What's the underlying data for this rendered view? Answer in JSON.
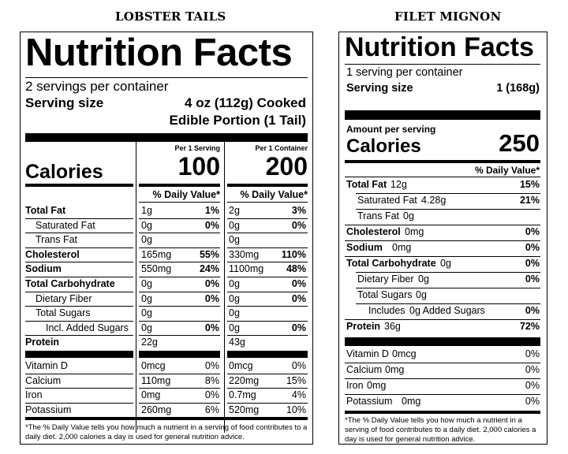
{
  "left": {
    "caption": "LOBSTER TAILS",
    "title": "Nutrition Facts",
    "servings": "2 servings per container",
    "serving_size_label": "Serving size",
    "serving_size_value_1": "4 oz (112g) Cooked",
    "serving_size_value_2": "Edible Portion (1 Tail)",
    "col_headers": [
      "Per 1 Serving",
      "Per 1 Container"
    ],
    "calories_label": "Calories",
    "calories": [
      "100",
      "200"
    ],
    "dv_header": "% Daily Value*",
    "rows": [
      {
        "label": "Total Fat",
        "bold": true,
        "indent": 0,
        "v1": "1g",
        "d1": "1%",
        "v2": "2g",
        "d2": "3%"
      },
      {
        "label": "Saturated Fat",
        "bold": false,
        "indent": 1,
        "v1": "0g",
        "d1": "0%",
        "v2": "0g",
        "d2": "0%"
      },
      {
        "label": "Trans Fat",
        "bold": false,
        "indent": 1,
        "v1": "0g",
        "d1": "",
        "v2": "0g",
        "d2": ""
      },
      {
        "label": "Cholesterol",
        "bold": true,
        "indent": 0,
        "v1": "165mg",
        "d1": "55%",
        "v2": "330mg",
        "d2": "110%"
      },
      {
        "label": "Sodium",
        "bold": true,
        "indent": 0,
        "v1": "550mg",
        "d1": "24%",
        "v2": "1100mg",
        "d2": "48%"
      },
      {
        "label": "Total Carbohydrate",
        "bold": true,
        "indent": 0,
        "v1": "0g",
        "d1": "0%",
        "v2": "0g",
        "d2": "0%"
      },
      {
        "label": "Dietary Fiber",
        "bold": false,
        "indent": 1,
        "v1": "0g",
        "d1": "0%",
        "v2": "0g",
        "d2": "0%"
      },
      {
        "label": "Total Sugars",
        "bold": false,
        "indent": 1,
        "v1": "0g",
        "d1": "",
        "v2": "0g",
        "d2": ""
      },
      {
        "label": "Incl. Added Sugars",
        "bold": false,
        "indent": 2,
        "v1": "0g",
        "d1": "0%",
        "v2": "0g",
        "d2": "0%"
      },
      {
        "label": "Protein",
        "bold": true,
        "indent": 0,
        "v1": "22g",
        "d1": "",
        "v2": "43g",
        "d2": ""
      }
    ],
    "vitamins": [
      {
        "label": "Vitamin D",
        "v1": "0mcg",
        "d1": "0%",
        "v2": "0mcg",
        "d2": "0%"
      },
      {
        "label": "Calcium",
        "v1": "110mg",
        "d1": "8%",
        "v2": "220mg",
        "d2": "15%"
      },
      {
        "label": "Iron",
        "v1": "0mg",
        "d1": "0%",
        "v2": "0.7mg",
        "d2": "4%"
      },
      {
        "label": "Potassium",
        "v1": "260mg",
        "d1": "6%",
        "v2": "520mg",
        "d2": "10%"
      }
    ],
    "footnote": "*The % Daily Value tells you how much a nutrient in a serving of food contributes to a daily diet. 2,000 calories a day is used for general nutrition advice."
  },
  "right": {
    "caption": "FILET MIGNON",
    "title": "Nutrition Facts",
    "servings": "1 serving per container",
    "serving_size_label": "Serving size",
    "serving_size_value": "1 (168g)",
    "amount_label": "Amount per serving",
    "calories_label": "Calories",
    "calories": "250",
    "dv_header": "% Daily Value*",
    "rows": [
      {
        "label": "Total Fat",
        "bold": true,
        "indent": 0,
        "amount": "12g",
        "dv": "15%"
      },
      {
        "label": "Saturated Fat",
        "bold": false,
        "indent": 1,
        "amount": "4.28g",
        "dv": "21%"
      },
      {
        "label": "Trans Fat",
        "bold": false,
        "indent": 1,
        "amount": "0g",
        "dv": ""
      },
      {
        "label": "Cholesterol",
        "bold": true,
        "indent": 0,
        "amount": "0mg",
        "dv": "0%"
      },
      {
        "label": "Sodium",
        "bold": true,
        "indent": 0,
        "amount": "0mg",
        "dv": "0%"
      },
      {
        "label": "Total Carbohydrate",
        "bold": true,
        "indent": 0,
        "amount": "0g",
        "dv": "0%"
      },
      {
        "label": "Dietary Fiber",
        "bold": false,
        "indent": 1,
        "amount": "0g",
        "dv": "0%"
      },
      {
        "label": "Total Sugars",
        "bold": false,
        "indent": 1,
        "amount": "0g",
        "dv": ""
      },
      {
        "label": "Includes",
        "bold": false,
        "indent": 2,
        "amount": "0g Added Sugars",
        "dv": "0%"
      },
      {
        "label": "Protein",
        "bold": true,
        "indent": 0,
        "amount": "36g",
        "dv": "72%"
      }
    ],
    "vitamins": [
      {
        "label": "Vitamin D",
        "amount": "0mcg",
        "dv": "0%"
      },
      {
        "label": "Calcium",
        "amount": "0mg",
        "dv": "0%"
      },
      {
        "label": "Iron",
        "amount": "0mg",
        "dv": "0%"
      },
      {
        "label": "Potassium",
        "amount": "0mg",
        "dv": "0%"
      }
    ],
    "footnote": "*The % Daily Value tells you how much a nutrient in a serving of food contributes to a daily diet. 2,000 calories a day is used for general nutrition advice."
  }
}
